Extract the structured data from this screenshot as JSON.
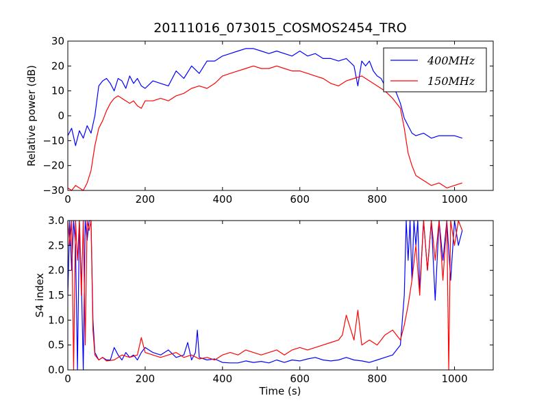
{
  "figure": {
    "title": "20111016_073015_COSMOS2454_TRO"
  },
  "chart_data": [
    {
      "type": "line",
      "title": "20111016_073015_COSMOS2454_TRO",
      "xlabel": "",
      "ylabel": "Relative power (dB)",
      "xlim": [
        0,
        1100
      ],
      "ylim": [
        -30,
        30
      ],
      "xticks": [
        0,
        200,
        400,
        600,
        800,
        1000
      ],
      "yticks": [
        -30,
        -20,
        -10,
        0,
        10,
        20,
        30
      ],
      "grid": false,
      "legend_position": "top-right",
      "series": [
        {
          "name": "400MHz",
          "color": "#0000ff",
          "x": [
            0,
            10,
            20,
            30,
            40,
            50,
            60,
            70,
            80,
            90,
            100,
            110,
            120,
            130,
            140,
            150,
            160,
            170,
            180,
            190,
            200,
            220,
            240,
            260,
            280,
            300,
            320,
            340,
            360,
            380,
            400,
            420,
            440,
            460,
            480,
            500,
            520,
            540,
            560,
            580,
            600,
            620,
            640,
            660,
            680,
            700,
            720,
            740,
            750,
            760,
            770,
            780,
            790,
            800,
            810,
            820,
            830,
            840,
            850,
            860,
            870,
            880,
            890,
            900,
            920,
            940,
            960,
            980,
            1000,
            1020
          ],
          "values": [
            -8,
            -5,
            -12,
            -6,
            -9,
            -4,
            -7,
            0,
            12,
            14,
            15,
            13,
            10,
            15,
            14,
            11,
            16,
            13,
            15,
            12,
            11,
            14,
            13,
            12,
            18,
            15,
            20,
            17,
            22,
            22,
            24,
            25,
            26,
            27,
            27,
            26,
            25,
            26,
            25,
            24,
            26,
            24,
            25,
            23,
            23,
            22,
            23,
            20,
            12,
            22,
            20,
            22,
            18,
            16,
            15,
            12,
            14,
            12,
            9,
            5,
            -1,
            -4,
            -7,
            -8,
            -7,
            -9,
            -8,
            -8,
            -8,
            -9
          ]
        },
        {
          "name": "150MHz",
          "color": "#ff0000",
          "x": [
            0,
            10,
            20,
            30,
            40,
            50,
            60,
            70,
            80,
            90,
            100,
            110,
            120,
            130,
            140,
            150,
            160,
            170,
            180,
            190,
            200,
            220,
            240,
            260,
            280,
            300,
            320,
            340,
            360,
            380,
            400,
            420,
            440,
            460,
            480,
            500,
            520,
            540,
            560,
            580,
            600,
            620,
            640,
            660,
            680,
            700,
            720,
            740,
            760,
            780,
            800,
            820,
            840,
            860,
            870,
            880,
            890,
            900,
            920,
            940,
            960,
            980,
            1000,
            1020
          ],
          "values": [
            -29,
            -30,
            -28,
            -29,
            -30,
            -27,
            -22,
            -12,
            -5,
            -2,
            2,
            5,
            7,
            8,
            7,
            6,
            5,
            6,
            4,
            3,
            6,
            6,
            7,
            6,
            8,
            9,
            11,
            12,
            11,
            13,
            16,
            17,
            18,
            19,
            20,
            19,
            19,
            20,
            19,
            18,
            18,
            17,
            16,
            15,
            13,
            12,
            14,
            15,
            16,
            14,
            12,
            10,
            7,
            3,
            -5,
            -15,
            -20,
            -24,
            -26,
            -28,
            -27,
            -29,
            -28,
            -27
          ]
        }
      ]
    },
    {
      "type": "line",
      "title": "",
      "xlabel": "Time (s)",
      "ylabel": "S4 index",
      "xlim": [
        0,
        1100
      ],
      "ylim": [
        0,
        3
      ],
      "xticks": [
        0,
        200,
        400,
        600,
        800,
        1000
      ],
      "yticks": [
        0.0,
        0.5,
        1.0,
        1.5,
        2.0,
        2.5,
        3.0
      ],
      "grid": false,
      "series": [
        {
          "name": "400MHz",
          "color": "#0000ff",
          "x": [
            0,
            5,
            10,
            15,
            20,
            25,
            30,
            35,
            40,
            45,
            50,
            55,
            60,
            65,
            70,
            80,
            90,
            100,
            110,
            120,
            130,
            140,
            150,
            160,
            170,
            180,
            190,
            200,
            220,
            240,
            260,
            280,
            300,
            310,
            320,
            330,
            335,
            340,
            360,
            380,
            400,
            420,
            440,
            460,
            480,
            500,
            520,
            540,
            560,
            580,
            600,
            620,
            640,
            660,
            680,
            700,
            720,
            740,
            760,
            780,
            800,
            820,
            840,
            860,
            870,
            875,
            880,
            885,
            890,
            895,
            900,
            905,
            910,
            920,
            930,
            940,
            950,
            960,
            970,
            980,
            990,
            1000,
            1010,
            1020
          ],
          "values": [
            1.5,
            3.0,
            2.0,
            3.0,
            2.5,
            0.0,
            3.0,
            1.8,
            0.0,
            3.0,
            2.6,
            3.0,
            3.0,
            1.0,
            0.35,
            0.2,
            0.25,
            0.2,
            0.2,
            0.45,
            0.3,
            0.2,
            0.35,
            0.25,
            0.3,
            0.2,
            0.35,
            0.45,
            0.35,
            0.3,
            0.4,
            0.25,
            0.3,
            0.55,
            0.2,
            0.35,
            0.8,
            0.25,
            0.2,
            0.22,
            0.15,
            0.14,
            0.14,
            0.18,
            0.15,
            0.17,
            0.14,
            0.2,
            0.15,
            0.2,
            0.18,
            0.22,
            0.25,
            0.2,
            0.18,
            0.2,
            0.25,
            0.2,
            0.18,
            0.15,
            0.2,
            0.25,
            0.3,
            0.5,
            1.5,
            3.0,
            2.2,
            3.0,
            1.8,
            3.0,
            2.5,
            3.0,
            1.6,
            3.0,
            2.0,
            3.0,
            1.4,
            3.0,
            2.2,
            3.0,
            1.8,
            3.0,
            2.5,
            2.8
          ]
        },
        {
          "name": "150MHz",
          "color": "#ff0000",
          "x": [
            0,
            5,
            10,
            15,
            20,
            25,
            30,
            35,
            40,
            45,
            50,
            55,
            60,
            65,
            70,
            80,
            90,
            100,
            120,
            140,
            160,
            180,
            190,
            200,
            220,
            240,
            260,
            280,
            300,
            320,
            340,
            360,
            380,
            400,
            420,
            440,
            460,
            480,
            500,
            520,
            540,
            560,
            580,
            600,
            620,
            640,
            660,
            680,
            700,
            710,
            720,
            740,
            750,
            760,
            780,
            800,
            820,
            840,
            860,
            870,
            880,
            890,
            900,
            910,
            920,
            930,
            940,
            950,
            960,
            970,
            980,
            985,
            990,
            1000,
            1010,
            1020
          ],
          "values": [
            3.0,
            2.5,
            3.0,
            0.0,
            3.0,
            2.2,
            3.0,
            1.5,
            3.0,
            0.5,
            3.0,
            2.8,
            3.0,
            0.8,
            0.3,
            0.2,
            0.25,
            0.18,
            0.2,
            0.3,
            0.25,
            0.3,
            0.65,
            0.35,
            0.3,
            0.25,
            0.3,
            0.35,
            0.25,
            0.3,
            0.22,
            0.25,
            0.2,
            0.3,
            0.35,
            0.3,
            0.4,
            0.35,
            0.3,
            0.35,
            0.4,
            0.3,
            0.4,
            0.45,
            0.4,
            0.45,
            0.5,
            0.55,
            0.6,
            0.7,
            1.1,
            0.6,
            1.2,
            0.5,
            0.6,
            0.5,
            0.7,
            0.8,
            0.6,
            0.9,
            1.3,
            1.8,
            2.5,
            1.5,
            3.0,
            2.0,
            3.0,
            2.2,
            3.0,
            1.8,
            3.0,
            0.0,
            3.0,
            2.5,
            3.0,
            2.8
          ]
        }
      ]
    }
  ]
}
